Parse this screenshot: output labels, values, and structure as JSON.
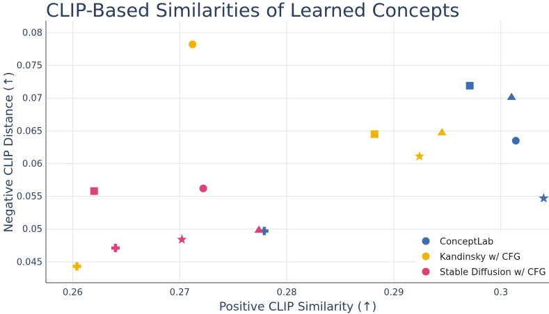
{
  "chart_data": {
    "type": "scatter",
    "title": "CLIP-Based Similarities of Learned Concepts",
    "xlabel": "Positive CLIP Similarity (↑)",
    "ylabel": "Negative CLIP Distance (↑)",
    "xlim": [
      0.2575,
      0.3045
    ],
    "ylim": [
      0.0418,
      0.0818
    ],
    "xticks": [
      0.26,
      0.27,
      0.28,
      0.29,
      0.3
    ],
    "xtick_labels": [
      "0.26",
      "0.27",
      "0.28",
      "0.29",
      "0.3"
    ],
    "yticks": [
      0.045,
      0.05,
      0.055,
      0.06,
      0.065,
      0.07,
      0.075,
      0.08
    ],
    "ytick_labels": [
      "0.045",
      "0.05",
      "0.055",
      "0.06",
      "0.065",
      "0.07",
      "0.075",
      "0.08"
    ],
    "legend_position": "bottom-right",
    "series": [
      {
        "name": "ConceptLab",
        "color": "#3d6cb0",
        "points": [
          {
            "x": 0.2971,
            "y": 0.0719,
            "marker": "square"
          },
          {
            "x": 0.301,
            "y": 0.0702,
            "marker": "triangle"
          },
          {
            "x": 0.3014,
            "y": 0.0635,
            "marker": "circle"
          },
          {
            "x": 0.304,
            "y": 0.0547,
            "marker": "star"
          },
          {
            "x": 0.2779,
            "y": 0.0497,
            "marker": "cross"
          }
        ]
      },
      {
        "name": "Kandinsky w/ CFG",
        "color": "#f0b400",
        "points": [
          {
            "x": 0.2712,
            "y": 0.0782,
            "marker": "circle"
          },
          {
            "x": 0.2882,
            "y": 0.0645,
            "marker": "square"
          },
          {
            "x": 0.2945,
            "y": 0.0648,
            "marker": "triangle"
          },
          {
            "x": 0.2924,
            "y": 0.0611,
            "marker": "star"
          },
          {
            "x": 0.2604,
            "y": 0.0443,
            "marker": "cross"
          }
        ]
      },
      {
        "name": "Stable Diffusion w/ CFG",
        "color": "#e0407a",
        "points": [
          {
            "x": 0.262,
            "y": 0.0558,
            "marker": "square"
          },
          {
            "x": 0.2722,
            "y": 0.0562,
            "marker": "circle"
          },
          {
            "x": 0.2774,
            "y": 0.0499,
            "marker": "triangle"
          },
          {
            "x": 0.2702,
            "y": 0.0484,
            "marker": "star"
          },
          {
            "x": 0.264,
            "y": 0.0471,
            "marker": "cross"
          }
        ]
      }
    ]
  }
}
